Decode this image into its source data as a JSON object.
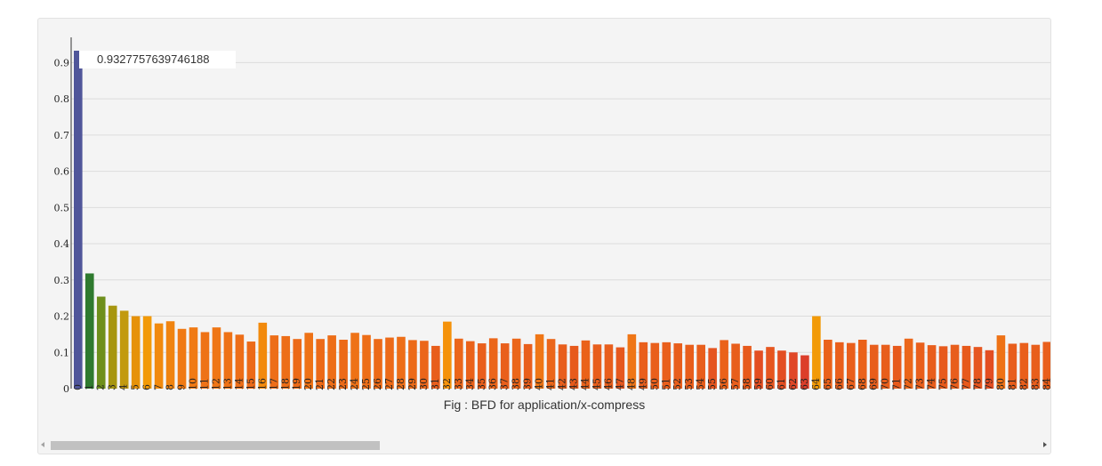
{
  "chart_data": {
    "type": "bar",
    "title": "",
    "caption": "Fig : BFD for application/x-compress",
    "tooltip": "0.9327757639746188",
    "ylim": [
      0,
      0.95
    ],
    "yticks": [
      "0",
      "0.1",
      "0.2",
      "0.3",
      "0.4",
      "0.5",
      "0.6",
      "0.7",
      "0.8",
      "0.9"
    ],
    "grid": true,
    "categories": [
      "0",
      "1",
      "2",
      "3",
      "4",
      "5",
      "6",
      "7",
      "8",
      "9",
      "10",
      "11",
      "12",
      "13",
      "14",
      "15",
      "16",
      "17",
      "18",
      "19",
      "20",
      "21",
      "22",
      "23",
      "24",
      "25",
      "26",
      "27",
      "28",
      "29",
      "30",
      "31",
      "32",
      "33",
      "34",
      "35",
      "36",
      "37",
      "38",
      "39",
      "40",
      "41",
      "42",
      "43",
      "44",
      "45",
      "46",
      "47",
      "48",
      "49",
      "50",
      "51",
      "52",
      "53",
      "54",
      "55",
      "56",
      "57",
      "58",
      "59",
      "60",
      "61",
      "62",
      "63",
      "64",
      "65",
      "66",
      "67",
      "68",
      "69",
      "70",
      "71",
      "72",
      "73",
      "74",
      "75",
      "76",
      "77",
      "78",
      "79",
      "80",
      "81",
      "82",
      "83",
      "84"
    ],
    "values": [
      0.9328,
      0.318,
      0.254,
      0.229,
      0.215,
      0.2,
      0.2,
      0.18,
      0.186,
      0.165,
      0.169,
      0.156,
      0.169,
      0.156,
      0.149,
      0.13,
      0.182,
      0.147,
      0.145,
      0.137,
      0.154,
      0.137,
      0.147,
      0.135,
      0.154,
      0.148,
      0.137,
      0.141,
      0.143,
      0.134,
      0.132,
      0.118,
      0.185,
      0.138,
      0.131,
      0.125,
      0.139,
      0.125,
      0.138,
      0.123,
      0.15,
      0.137,
      0.122,
      0.118,
      0.133,
      0.122,
      0.122,
      0.114,
      0.15,
      0.128,
      0.126,
      0.128,
      0.125,
      0.121,
      0.121,
      0.112,
      0.134,
      0.124,
      0.118,
      0.105,
      0.115,
      0.105,
      0.1,
      0.092,
      0.2,
      0.135,
      0.128,
      0.126,
      0.135,
      0.121,
      0.121,
      0.118,
      0.138,
      0.127,
      0.12,
      0.117,
      0.121,
      0.118,
      0.115,
      0.106,
      0.147,
      0.124,
      0.126,
      0.121,
      0.129
    ],
    "colors": [
      "#50569a",
      "#2f7a2f",
      "#6e8f1c",
      "#a7960f",
      "#c29a0e",
      "#e6920a",
      "#f29a08",
      "#f18a0e",
      "#f08410",
      "#f07a14",
      "#f07a14",
      "#ee7216",
      "#ef7616",
      "#ee7216",
      "#ed6e18",
      "#ec6a18",
      "#f28a0c",
      "#ed6e18",
      "#ed6e18",
      "#ec6a18",
      "#ee7216",
      "#ec6a18",
      "#ed6e18",
      "#ec6a18",
      "#ee7216",
      "#ed6e18",
      "#ec6a18",
      "#ec6a18",
      "#ed6e18",
      "#ec6a18",
      "#eb661a",
      "#e85e1c",
      "#f5920a",
      "#eb661a",
      "#ea621a",
      "#e95f1c",
      "#eb661a",
      "#e95f1c",
      "#eb661a",
      "#e95f1c",
      "#ef7616",
      "#eb661a",
      "#e85e1c",
      "#e75a1c",
      "#ea621a",
      "#e85e1c",
      "#e85e1c",
      "#e6581e",
      "#ef7616",
      "#e95f1c",
      "#e95f1c",
      "#e95f1c",
      "#e85e1c",
      "#e85e1c",
      "#e85e1c",
      "#e55520",
      "#ea621a",
      "#e85e1c",
      "#e75a1c",
      "#e34e22",
      "#e65620",
      "#e34e22",
      "#e04828",
      "#dc3e2a",
      "#f29a08",
      "#ea621a",
      "#e95f1c",
      "#e95f1c",
      "#ea621a",
      "#e85e1c",
      "#e85e1c",
      "#e75a1c",
      "#eb661a",
      "#e95f1c",
      "#e85e1c",
      "#e75a1c",
      "#e85e1c",
      "#e75a1c",
      "#e65620",
      "#e34e22",
      "#ee7216",
      "#e85e1c",
      "#e95f1c",
      "#e85e1c",
      "#e95f1c"
    ]
  }
}
